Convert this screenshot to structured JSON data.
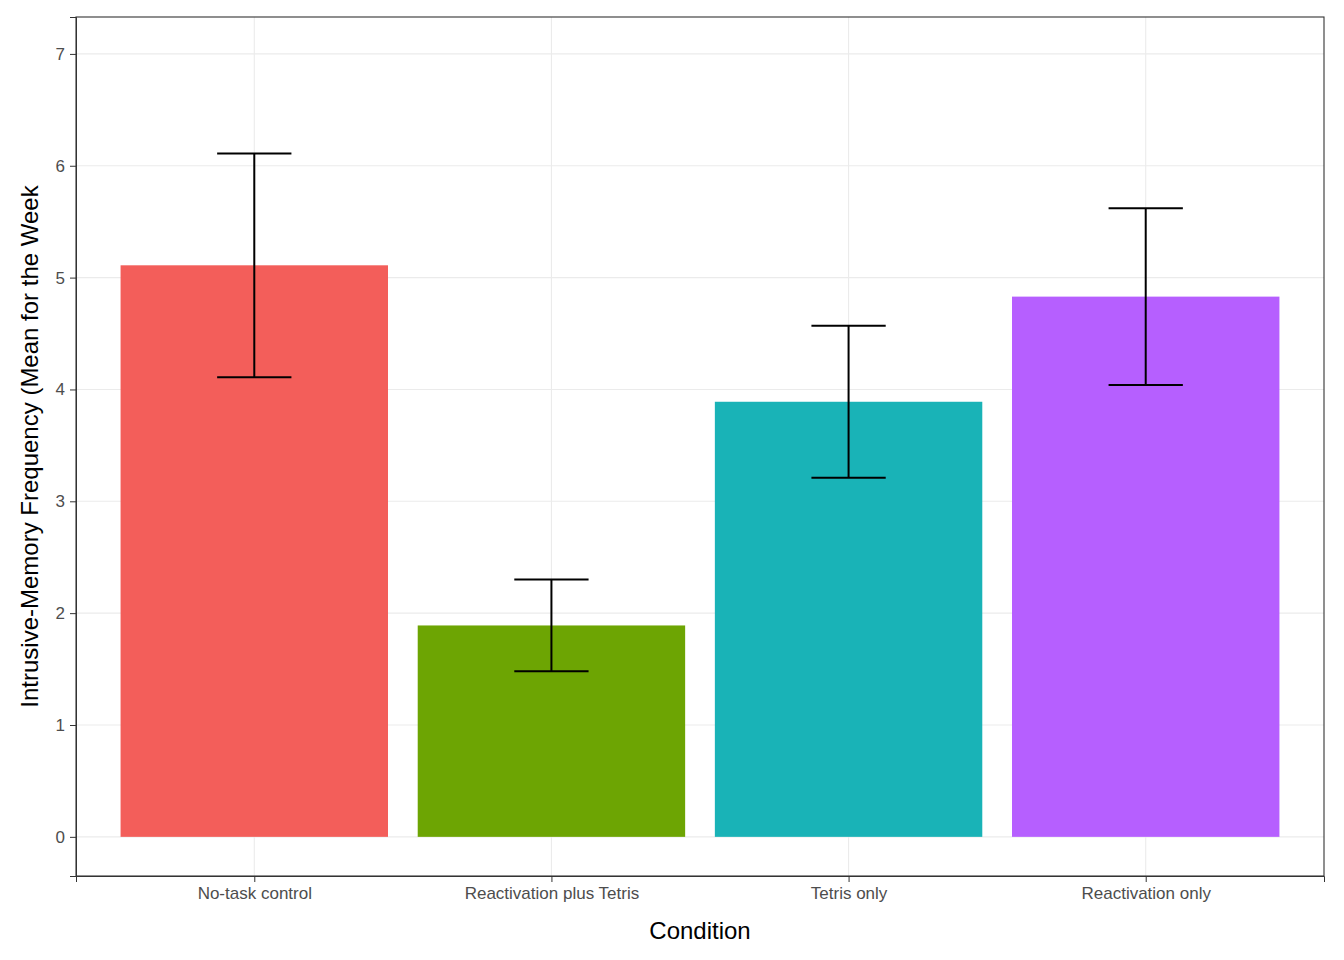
{
  "chart_data": {
    "type": "bar",
    "x_label": "Condition",
    "y_label": "Intrusive-Memory Frequency (Mean for the Week",
    "categories": [
      "No-task control",
      "Reactivation plus Tetris",
      "Tetris only",
      "Reactivation only"
    ],
    "values": [
      5.11,
      1.89,
      3.89,
      4.83
    ],
    "errors": [
      1.0,
      0.41,
      0.68,
      0.79
    ],
    "colors": [
      "#F35E5A",
      "#6DA503",
      "#19B3B7",
      "#B65FFF"
    ],
    "ylim": [
      -0.35,
      7.33
    ],
    "yticks": [
      0,
      1,
      2,
      3,
      4,
      5,
      6,
      7
    ],
    "grid": true
  }
}
